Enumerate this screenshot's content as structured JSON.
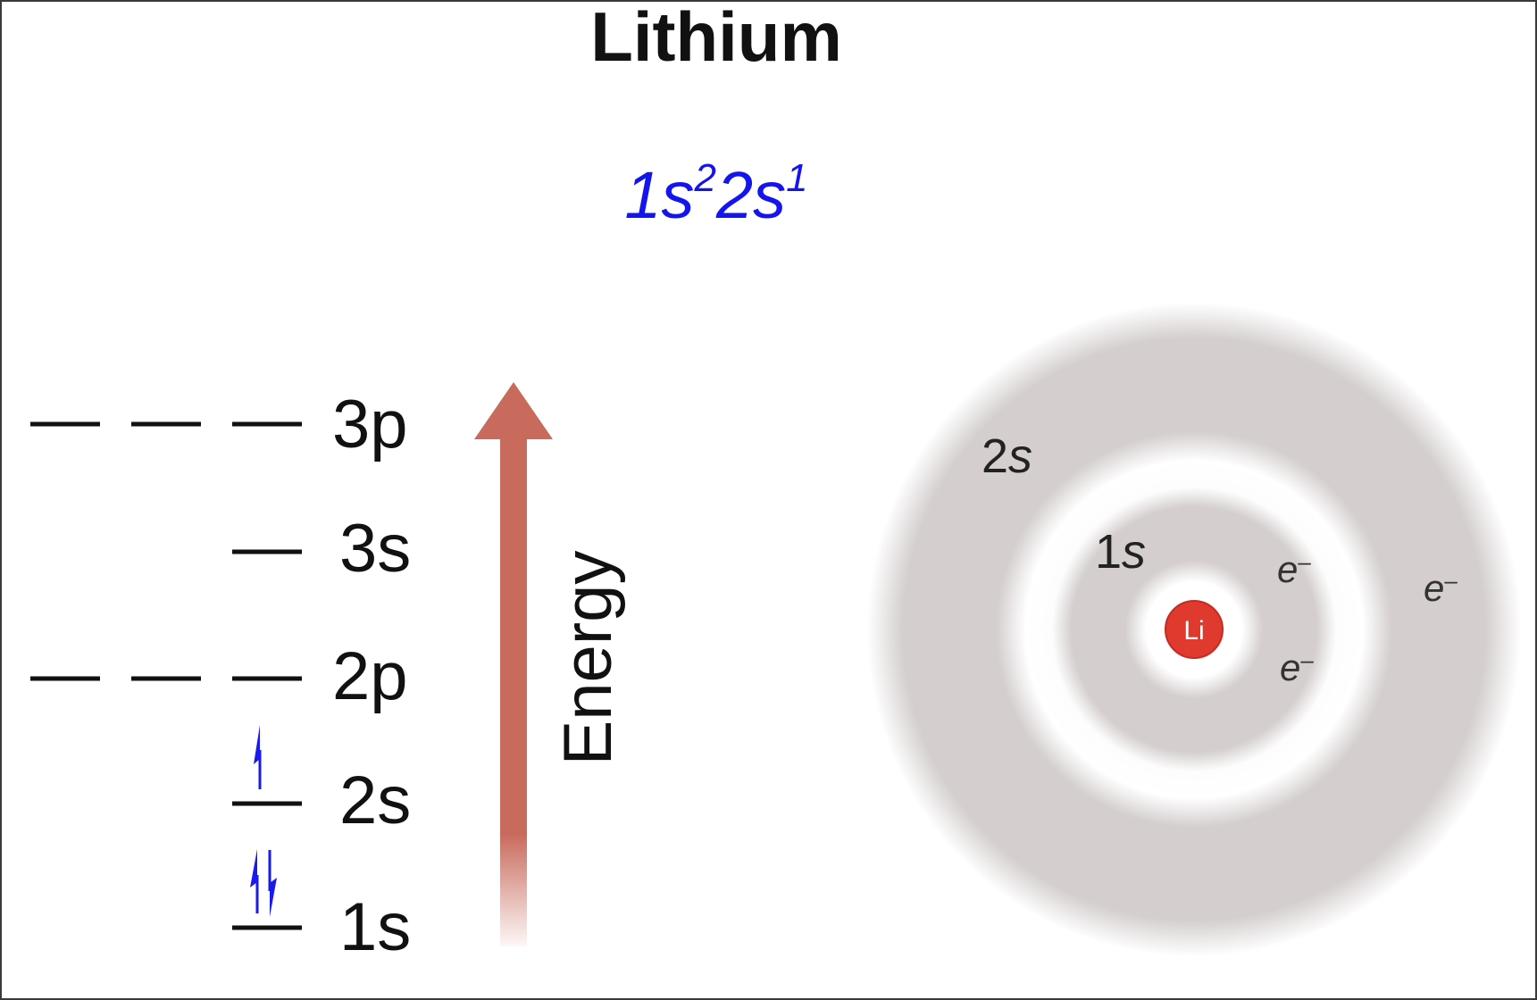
{
  "title": "Lithium",
  "electron_configuration": {
    "terms": [
      {
        "orbital": "1s",
        "superscript": "2"
      },
      {
        "orbital": "2s",
        "superscript": "1"
      }
    ]
  },
  "energy_axis": {
    "label": "Energy"
  },
  "energy_levels": [
    {
      "label": "3p",
      "electrons": []
    },
    {
      "label": "3s",
      "electrons": []
    },
    {
      "label": "2p",
      "electrons": []
    },
    {
      "label": "2s",
      "electrons": [
        "up"
      ]
    },
    {
      "label": "1s",
      "electrons": [
        "up",
        "down"
      ]
    }
  ],
  "atom_model": {
    "nucleus_label": "Li",
    "shell_labels": [
      "1s",
      "2s"
    ],
    "electron_symbol": "e",
    "electron_charge": "–"
  },
  "colors": {
    "background": "#ffffff",
    "configuration_text": "#1414ee",
    "electron_arrow": "#1a1aee",
    "energy_arrow": "#c86a5c",
    "shell_cloud": "#d4cece",
    "nucleus": "#e03a2f",
    "text": "#111111"
  }
}
